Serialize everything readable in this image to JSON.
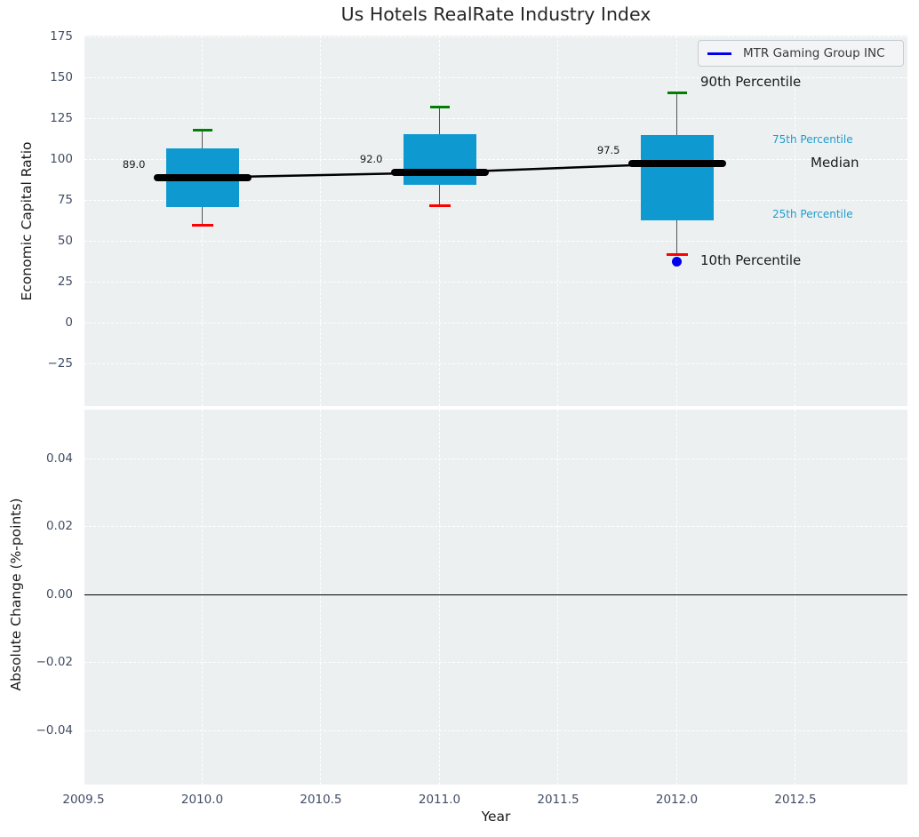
{
  "figure": {
    "title": "Us Hotels RealRate Industry Index"
  },
  "legend": {
    "label": "MTR Gaming Group INC"
  },
  "annotations": {
    "p90": "90th Percentile",
    "p75": "75th Percentile",
    "median": "Median",
    "p25": "25th Percentile",
    "p10": "10th Percentile"
  },
  "colors": {
    "box_fill": "#0e9ad1",
    "whisker": "#555555",
    "cap_upper": "#008000",
    "cap_lower": "#ff0000",
    "median_line": "#000000",
    "company_series": "#0000ee",
    "percentile_label": "#1f9ccd",
    "plot_bg": "#ecf0f1",
    "grid": "#ffffff",
    "tick_label": "#414c63",
    "text": "#1a1a1a",
    "zero_line": "#000000"
  },
  "chart_data": {
    "type": "boxplot",
    "title": "Us Hotels RealRate Industry Index",
    "xlabel": "Year",
    "xticks": [
      2009.5,
      2010.0,
      2010.5,
      2011.0,
      2011.5,
      2012.0,
      2012.5
    ],
    "xlim": [
      2009.504,
      2012.959
    ],
    "grid": true,
    "panels": [
      {
        "ylabel": "Economic Capital Ratio",
        "yticks": [
          175,
          150,
          125,
          100,
          75,
          50,
          25,
          0,
          -25
        ],
        "ylim": [
          -50.8,
          175.8
        ],
        "boxes": [
          {
            "year": 2010,
            "p10": 60,
            "p25": 71,
            "median": 89,
            "p75": 107,
            "p90": 118
          },
          {
            "year": 2011,
            "p10": 72,
            "p25": 84.5,
            "median": 92,
            "p75": 115.5,
            "p90": 132
          },
          {
            "year": 2012,
            "p10": 42,
            "p25": 63,
            "median": 97.5,
            "p75": 115,
            "p90": 141
          }
        ],
        "median_labels": [
          "89.0",
          "92.0",
          "97.5"
        ],
        "median_line": {
          "x": [
            2010,
            2011,
            2012
          ],
          "y": [
            89,
            92,
            97.5
          ]
        },
        "company_series": {
          "name": "MTR Gaming Group INC",
          "points": [
            {
              "x": 2012,
              "y": 37.5
            }
          ]
        },
        "legend": [
          "MTR Gaming Group INC"
        ],
        "legend_position": "upper right"
      },
      {
        "ylabel": "Absolute Change (%-points)",
        "yticks": [
          0.04,
          0.02,
          0.0,
          -0.02,
          -0.04
        ],
        "ytick_labels": [
          "0.04",
          "0.02",
          "0.00",
          "−0.02",
          "−0.04"
        ],
        "ylim": [
          -0.0558,
          0.0545
        ],
        "zero_line": 0.0,
        "series": []
      }
    ]
  }
}
